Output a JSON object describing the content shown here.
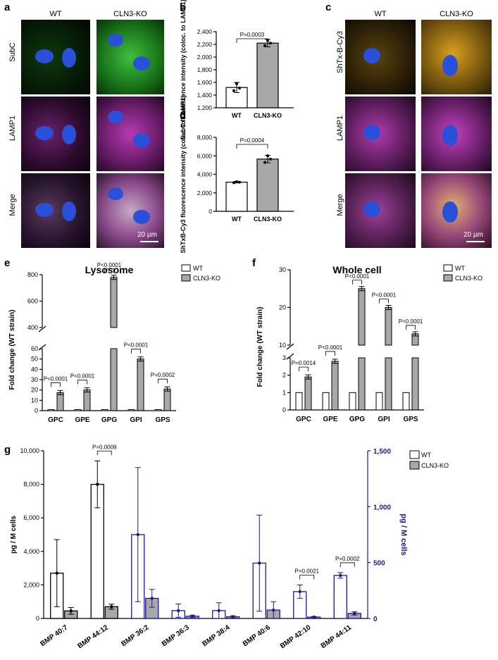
{
  "panels": {
    "a": "a",
    "b": "b",
    "c": "c",
    "d": "d",
    "e": "e",
    "f": "f",
    "g": "g"
  },
  "panel_a": {
    "columns": [
      "WT",
      "CLN3-KO"
    ],
    "rows": [
      "SubC",
      "LAMP1",
      "Merge"
    ],
    "scale": "20 µm",
    "colors": {
      "subc": "#22c022",
      "lamp1": "#d03cd0",
      "nucleus": "#2a4fd8"
    }
  },
  "panel_c": {
    "columns": [
      "WT",
      "CLN3-KO"
    ],
    "rows": [
      "ShTx-B-Cy3",
      "LAMP1",
      "Merge"
    ],
    "scale": "20 µm",
    "colors": {
      "shtx": "#d9a020",
      "lamp1": "#d03cd0",
      "nucleus": "#2a4fd8"
    }
  },
  "chart_data": [
    {
      "panel": "b",
      "type": "bar",
      "categories": [
        "WT",
        "CLN3-KO"
      ],
      "values": [
        1520,
        2220
      ],
      "errors": [
        80,
        60
      ],
      "points": [
        [
          1470,
          1580,
          1510
        ],
        [
          2180,
          2260,
          2220
        ]
      ],
      "ylabel": "SubC fluorescence intensity (coloc. to LAMP1)",
      "yticks": [
        "1,200",
        "1,400",
        "1,600",
        "1,800",
        "2,000",
        "2,200",
        "2,400"
      ],
      "ylim": [
        1200,
        2400
      ],
      "annotation": "P=0.0003"
    },
    {
      "panel": "d",
      "type": "bar",
      "categories": [
        "WT",
        "CLN3-KO"
      ],
      "values": [
        3150,
        5650
      ],
      "errors": [
        80,
        400
      ],
      "points": [
        [
          3100,
          3200,
          3150
        ],
        [
          5300,
          6000,
          5650
        ]
      ],
      "ylabel": "ShTxB-Cy3 fluorescence intensity (coloc. to LAMP1)",
      "yticks": [
        "0",
        "2,000",
        "4,000",
        "6,000",
        "8,000"
      ],
      "ylim": [
        0,
        8000
      ],
      "annotation": "P=0.0004"
    },
    {
      "panel": "e",
      "type": "bar",
      "title": "Lysosome",
      "ylabel": "Fold change (WT strain)",
      "categories": [
        "GPC",
        "GPE",
        "GPG",
        "GPI",
        "GPS"
      ],
      "series": [
        {
          "name": "WT",
          "values": [
            1,
            1,
            1,
            1,
            1
          ]
        },
        {
          "name": "CLN3-KO",
          "values": [
            17.5,
            20,
            780,
            50,
            21
          ]
        }
      ],
      "pvalues": [
        "P<0.0001",
        "P<0.0001",
        "P<0.0001",
        "P<0.0001",
        "P=0.0002"
      ],
      "yticks_lower": [
        "0",
        "10",
        "20",
        "30",
        "40",
        "50",
        "60"
      ],
      "yticks_upper": [
        "400",
        "600",
        "800"
      ],
      "axis_break": [
        60,
        400
      ]
    },
    {
      "panel": "f",
      "type": "bar",
      "title": "Whole cell",
      "ylabel": "Fold change (WT strain)",
      "categories": [
        "GPC",
        "GPE",
        "GPG",
        "GPI",
        "GPS"
      ],
      "series": [
        {
          "name": "WT",
          "values": [
            1,
            1,
            1,
            1,
            1
          ]
        },
        {
          "name": "CLN3-KO",
          "values": [
            1.9,
            2.8,
            25,
            20,
            13
          ]
        }
      ],
      "pvalues": [
        "P=0.0014",
        "P<0.0001",
        "P<0.0001",
        "P<0.0001",
        "P<0.0001"
      ],
      "yticks_lower": [
        "0",
        "1",
        "2",
        "3"
      ],
      "yticks_upper": [
        "10",
        "20",
        "30"
      ],
      "axis_break": [
        3,
        7
      ]
    },
    {
      "panel": "g",
      "type": "bar",
      "ylabel_left": "pg / M cells",
      "ylabel_right": "pg / M cells",
      "categories": [
        "BMP 40:7",
        "BMP 44:12",
        "BMP 36:2",
        "BMP 36:3",
        "BMP 38:4",
        "BMP 40:6",
        "BMP 42:10",
        "BMP 44:11"
      ],
      "axis": [
        "left",
        "left",
        "right",
        "right",
        "right",
        "right",
        "right",
        "right"
      ],
      "series": [
        {
          "name": "WT",
          "values": [
            2700,
            8000,
            750,
            70,
            70,
            495,
            240,
            385
          ]
        },
        {
          "name": "CLN3-KO",
          "values": [
            450,
            700,
            180,
            20,
            15,
            75,
            12,
            45
          ]
        }
      ],
      "errors_wt": [
        2000,
        1400,
        600,
        60,
        70,
        430,
        60,
        25
      ],
      "errors_ko": [
        200,
        150,
        80,
        10,
        10,
        75,
        5,
        15
      ],
      "yticks_left": [
        "0",
        "2,000",
        "4,000",
        "6,000",
        "8,000",
        "10,000"
      ],
      "ylim_left": [
        0,
        10000
      ],
      "yticks_right": [
        "0",
        "500",
        "1,000",
        "1,500"
      ],
      "ylim_right": [
        0,
        1500
      ],
      "annotations": [
        {
          "category": "BMP 44:12",
          "text": "P=0.0009"
        },
        {
          "category": "BMP 42:10",
          "text": "P=0.0021"
        },
        {
          "category": "BMP 44:11",
          "text": "P=0.0002"
        }
      ]
    }
  ]
}
